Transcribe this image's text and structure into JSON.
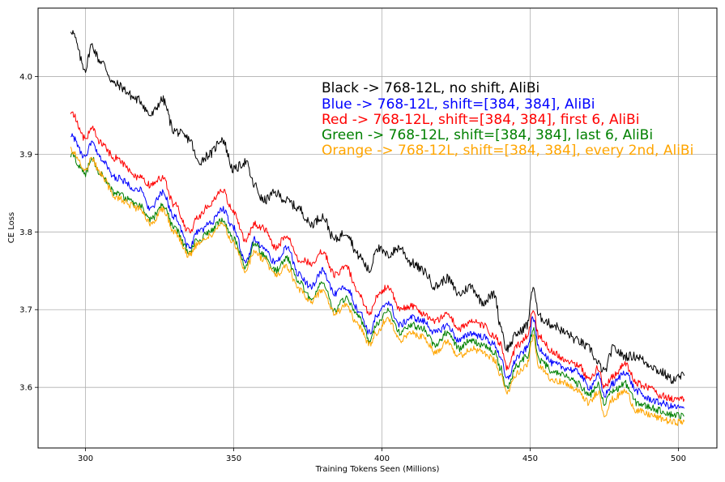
{
  "chart_data": {
    "type": "line",
    "title": "",
    "xlabel": "Training Tokens Seen (Millions)",
    "ylabel": "CE Loss",
    "xlim": [
      284,
      513
    ],
    "ylim": [
      3.522,
      4.088
    ],
    "xticks": [
      300,
      350,
      400,
      450,
      500
    ],
    "yticks": [
      3.6,
      3.7,
      3.8,
      3.9,
      4.0
    ],
    "x_tick_labels": [
      "300",
      "350",
      "400",
      "450",
      "500"
    ],
    "y_tick_labels": [
      "3.6",
      "3.7",
      "3.8",
      "3.9",
      "4.0"
    ],
    "grid": true,
    "legend_position": "top-right, as colored text lines",
    "legend": [
      {
        "text": "Black -> 768-12L, no shift, AliBi",
        "color": "#000000"
      },
      {
        "text": "Blue -> 768-12L, shift=[384, 384], AliBi",
        "color": "#0000ff"
      },
      {
        "text": "Red -> 768-12L, shift=[384, 384], first 6, AliBi",
        "color": "#ff0000"
      },
      {
        "text": "Green -> 768-12L, shift=[384, 384], last 6, AliBi",
        "color": "#008000"
      },
      {
        "text": "Orange -> 768-12L, shift=[384, 384], every 2nd, AliBi",
        "color": "#ffa500"
      }
    ],
    "x": [
      295,
      300,
      302,
      305,
      310,
      318,
      322,
      326,
      330,
      335,
      338,
      342,
      346,
      350,
      354,
      357,
      360,
      364,
      368,
      372,
      376,
      380,
      384,
      388,
      392,
      396,
      398,
      402,
      406,
      410,
      414,
      418,
      422,
      426,
      430,
      434,
      438,
      440,
      442,
      446,
      449,
      451,
      453,
      458,
      462,
      466,
      470,
      473,
      475,
      478,
      482,
      486,
      490,
      494,
      498,
      502
    ],
    "series": [
      {
        "color": "#000000",
        "values": [
          4.06,
          4.01,
          4.04,
          4.02,
          3.99,
          3.97,
          3.95,
          3.97,
          3.93,
          3.92,
          3.89,
          3.9,
          3.92,
          3.88,
          3.89,
          3.86,
          3.84,
          3.85,
          3.84,
          3.83,
          3.81,
          3.82,
          3.79,
          3.8,
          3.77,
          3.75,
          3.78,
          3.77,
          3.78,
          3.76,
          3.75,
          3.73,
          3.74,
          3.72,
          3.73,
          3.71,
          3.72,
          3.68,
          3.65,
          3.67,
          3.68,
          3.73,
          3.69,
          3.68,
          3.67,
          3.66,
          3.65,
          3.63,
          3.62,
          3.65,
          3.64,
          3.64,
          3.63,
          3.62,
          3.61,
          3.615
        ]
      },
      {
        "color": "#0000ff",
        "values": [
          3.925,
          3.895,
          3.915,
          3.895,
          3.87,
          3.855,
          3.83,
          3.85,
          3.82,
          3.78,
          3.8,
          3.81,
          3.83,
          3.805,
          3.76,
          3.79,
          3.78,
          3.76,
          3.78,
          3.745,
          3.73,
          3.75,
          3.72,
          3.73,
          3.7,
          3.67,
          3.69,
          3.71,
          3.68,
          3.69,
          3.685,
          3.67,
          3.68,
          3.66,
          3.67,
          3.665,
          3.655,
          3.64,
          3.61,
          3.64,
          3.65,
          3.69,
          3.65,
          3.63,
          3.625,
          3.62,
          3.6,
          3.615,
          3.59,
          3.605,
          3.62,
          3.595,
          3.585,
          3.58,
          3.575,
          3.573
        ]
      },
      {
        "color": "#ff0000",
        "values": [
          3.955,
          3.92,
          3.935,
          3.915,
          3.895,
          3.87,
          3.86,
          3.87,
          3.835,
          3.8,
          3.82,
          3.835,
          3.855,
          3.825,
          3.79,
          3.81,
          3.805,
          3.78,
          3.795,
          3.765,
          3.76,
          3.775,
          3.745,
          3.755,
          3.72,
          3.695,
          3.715,
          3.73,
          3.7,
          3.705,
          3.695,
          3.685,
          3.695,
          3.675,
          3.685,
          3.68,
          3.665,
          3.655,
          3.625,
          3.655,
          3.665,
          3.7,
          3.665,
          3.645,
          3.635,
          3.63,
          3.61,
          3.625,
          3.6,
          3.615,
          3.63,
          3.605,
          3.6,
          3.59,
          3.585,
          3.585
        ]
      },
      {
        "color": "#008000",
        "values": [
          3.9,
          3.875,
          3.895,
          3.875,
          3.85,
          3.835,
          3.815,
          3.835,
          3.805,
          3.775,
          3.79,
          3.8,
          3.815,
          3.79,
          3.755,
          3.785,
          3.77,
          3.75,
          3.765,
          3.735,
          3.715,
          3.735,
          3.7,
          3.715,
          3.69,
          3.66,
          3.68,
          3.7,
          3.67,
          3.68,
          3.675,
          3.655,
          3.67,
          3.65,
          3.66,
          3.655,
          3.645,
          3.625,
          3.6,
          3.63,
          3.64,
          3.675,
          3.635,
          3.62,
          3.615,
          3.605,
          3.59,
          3.605,
          3.58,
          3.595,
          3.605,
          3.58,
          3.575,
          3.57,
          3.565,
          3.563
        ]
      },
      {
        "color": "#ffa500",
        "values": [
          3.905,
          3.88,
          3.895,
          3.875,
          3.845,
          3.83,
          3.81,
          3.83,
          3.8,
          3.77,
          3.785,
          3.795,
          3.81,
          3.785,
          3.75,
          3.775,
          3.765,
          3.745,
          3.755,
          3.725,
          3.71,
          3.725,
          3.695,
          3.705,
          3.68,
          3.655,
          3.67,
          3.69,
          3.66,
          3.67,
          3.665,
          3.645,
          3.66,
          3.64,
          3.65,
          3.645,
          3.635,
          3.615,
          3.595,
          3.62,
          3.63,
          3.665,
          3.625,
          3.61,
          3.605,
          3.595,
          3.58,
          3.595,
          3.565,
          3.585,
          3.595,
          3.57,
          3.565,
          3.56,
          3.555,
          3.556
        ]
      }
    ]
  }
}
